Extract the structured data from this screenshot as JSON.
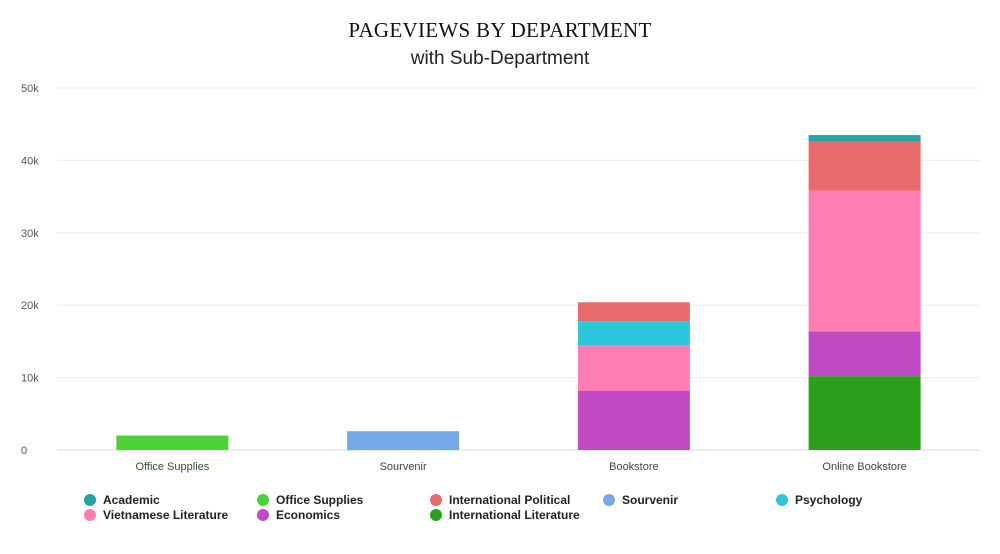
{
  "chart_data": {
    "type": "bar",
    "stacked": true,
    "title": "PAGEVIEWS BY DEPARTMENT",
    "subtitle": "with Sub-Department",
    "xlabel": "",
    "ylabel": "",
    "ylim": [
      0,
      50000
    ],
    "yticks": [
      {
        "value": 0,
        "label": "0"
      },
      {
        "value": 10000,
        "label": "10k"
      },
      {
        "value": 20000,
        "label": "20k"
      },
      {
        "value": 30000,
        "label": "30k"
      },
      {
        "value": 40000,
        "label": "40k"
      },
      {
        "value": 50000,
        "label": "50k"
      }
    ],
    "categories": [
      "Office Supplies",
      "Sourvenir",
      "Bookstore",
      "Online Bookstore"
    ],
    "series": [
      {
        "name": "International Literature",
        "color": "#2ca01c",
        "values": [
          0,
          0,
          0,
          10200
        ]
      },
      {
        "name": "Office Supplies",
        "color": "#4cd137",
        "values": [
          2000,
          0,
          0,
          0
        ]
      },
      {
        "name": "Sourvenir",
        "color": "#74a9e8",
        "values": [
          0,
          2600,
          0,
          0
        ]
      },
      {
        "name": "Economics",
        "color": "#c04ac4",
        "values": [
          0,
          0,
          8200,
          6200
        ]
      },
      {
        "name": "Vietnamese Literature",
        "color": "#ff7eb1",
        "values": [
          0,
          0,
          6200,
          19400
        ]
      },
      {
        "name": "Psychology",
        "color": "#2dc6dd",
        "values": [
          0,
          0,
          3400,
          0
        ]
      },
      {
        "name": "International Political",
        "color": "#e86b6b",
        "values": [
          0,
          0,
          2600,
          6800
        ]
      },
      {
        "name": "Academic",
        "color": "#23a3a3",
        "values": [
          0,
          0,
          0,
          900
        ]
      }
    ],
    "legend": [
      {
        "name": "Academic",
        "color": "#23a3a3"
      },
      {
        "name": "Office Supplies",
        "color": "#4cd137"
      },
      {
        "name": "International Political",
        "color": "#e86b6b"
      },
      {
        "name": "Sourvenir",
        "color": "#74a9e8"
      },
      {
        "name": "Psychology",
        "color": "#2dc6dd"
      },
      {
        "name": "Vietnamese Literature",
        "color": "#ff7eb1"
      },
      {
        "name": "Economics",
        "color": "#c04ac4"
      },
      {
        "name": "International Literature",
        "color": "#2ca01c"
      }
    ],
    "legend_position": "bottom",
    "grid": true
  }
}
